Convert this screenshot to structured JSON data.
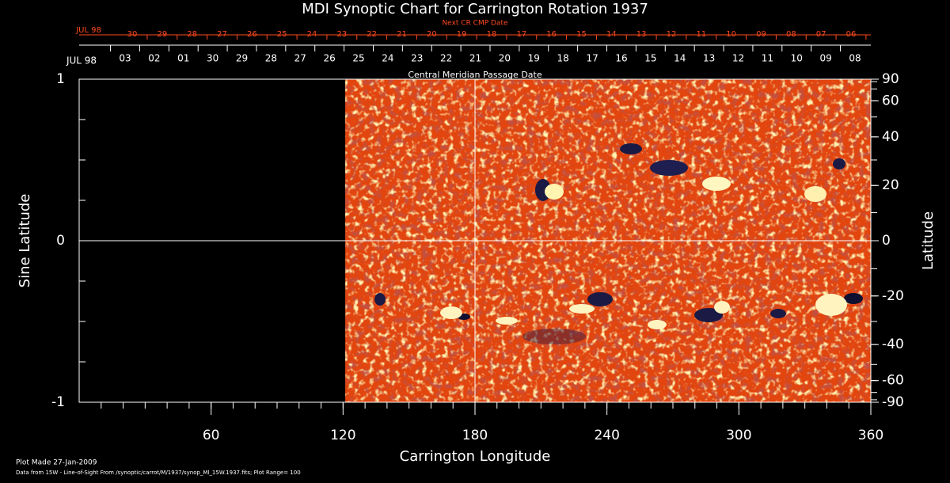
{
  "chart_data": {
    "type": "synoptic-map",
    "title": "MDI Synoptic Chart for Carrington Rotation 1937",
    "xlabel": "Carrington Longitude",
    "ylabel": "Sine Latitude",
    "y2label": "Latitude",
    "xlim": [
      0,
      360
    ],
    "xticks": [
      60,
      120,
      180,
      240,
      300,
      360
    ],
    "xminor_step": 10,
    "ylim": [
      -1,
      1
    ],
    "yticks": [
      -1,
      0,
      1
    ],
    "yminor_step": 0.25,
    "y2lim": [
      -90,
      90
    ],
    "y2scale": "sine",
    "y2ticks": [
      90,
      60,
      40,
      20,
      0,
      -20,
      -40,
      -60,
      -90
    ],
    "y2minor_step": 10,
    "data_xlim": [
      121,
      360
    ],
    "reference_lines": {
      "x": 180,
      "y": 0
    },
    "top_axis": {
      "title": "Central Meridian Passage Date",
      "month": "JUL 98",
      "dates": [
        "03",
        "02",
        "01",
        "30",
        "29",
        "28",
        "27",
        "26",
        "25",
        "24",
        "23",
        "22",
        "21",
        "20",
        "19",
        "18",
        "17",
        "16",
        "15",
        "14",
        "13",
        "12",
        "11",
        "10",
        "09",
        "08"
      ]
    },
    "next_axis": {
      "title": "Next CR CMP Date",
      "month": "JUL 98",
      "color": "#ff4a20",
      "dates": [
        "30",
        "29",
        "28",
        "27",
        "26",
        "25",
        "24",
        "23",
        "22",
        "21",
        "20",
        "19",
        "18",
        "17",
        "16",
        "15",
        "14",
        "13",
        "12",
        "11",
        "10",
        "09",
        "08",
        "07",
        "06"
      ]
    },
    "footer": [
      "Plot Made 27-Jan-2009",
      "Data from 15W - Line-of-Sight From /synoptic/carrot/M/1937/synop_Ml_15W.1937.fits; Plot Range=  100"
    ]
  }
}
